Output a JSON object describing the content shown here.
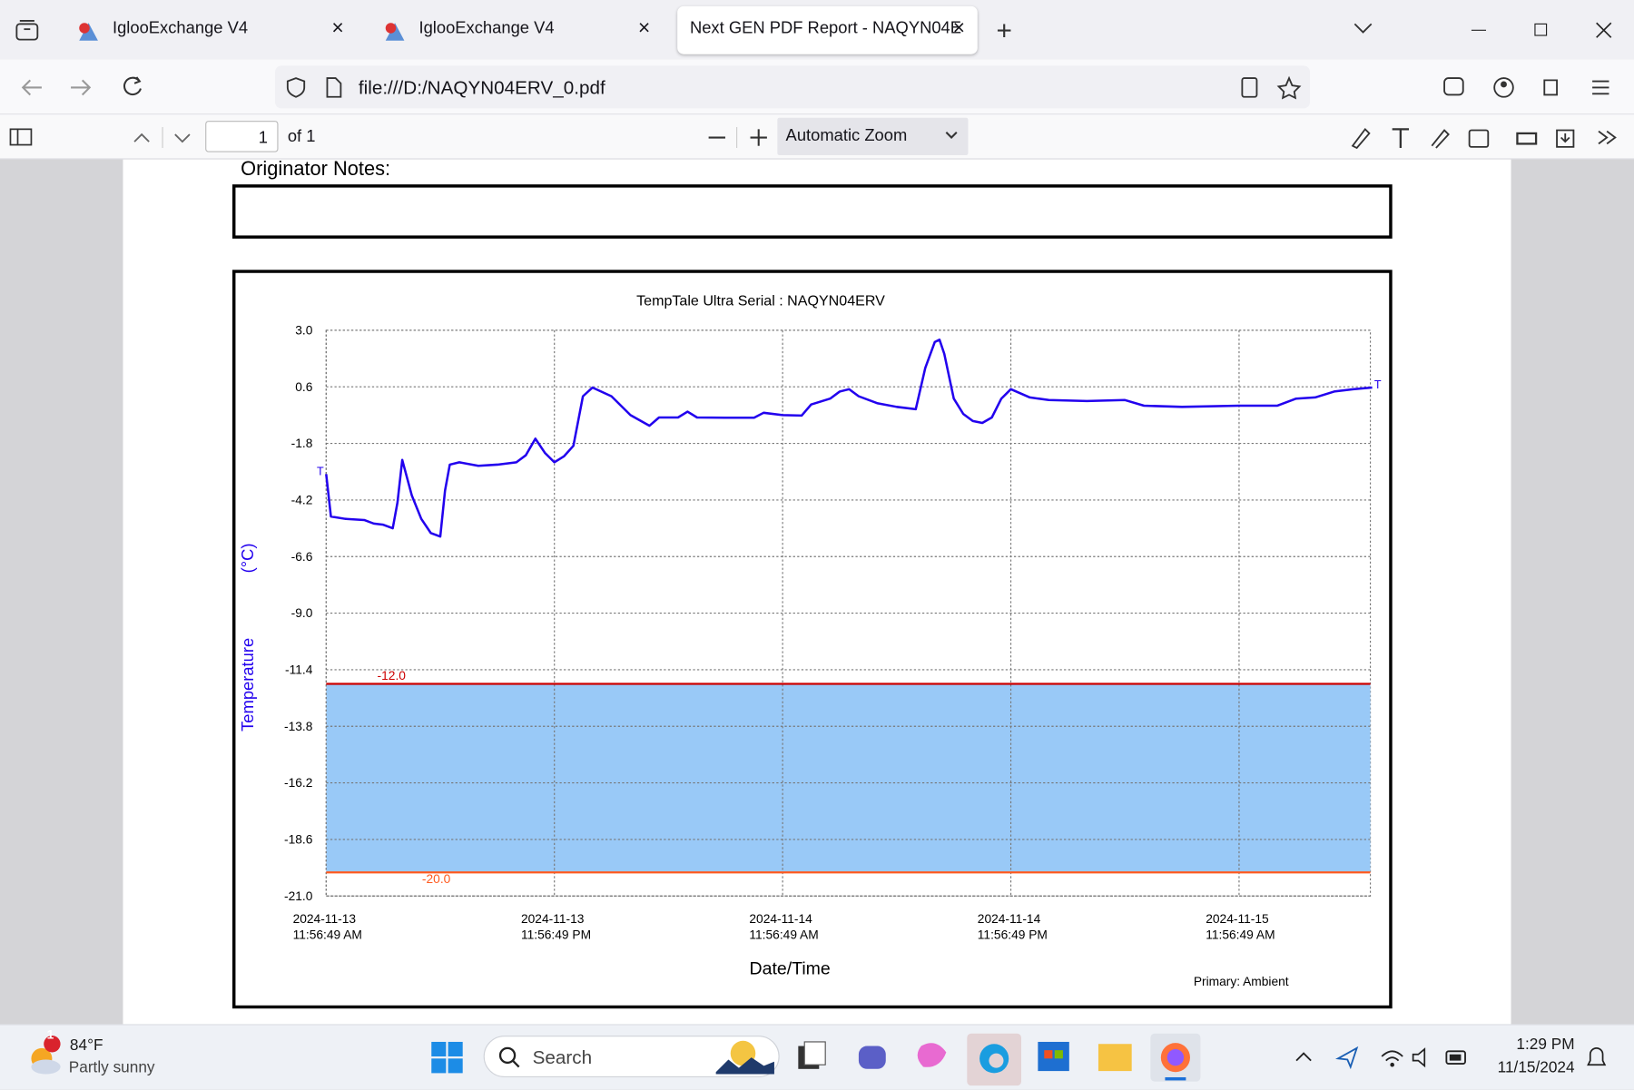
{
  "browser": {
    "tabs": [
      {
        "title": "IglooExchange V4"
      },
      {
        "title": "IglooExchange V4"
      },
      {
        "title": "Next GEN PDF Report - NAQYN04E"
      }
    ],
    "url": "file:///D:/NAQYN04ERV_0.pdf"
  },
  "pdf_toolbar": {
    "page": "1",
    "page_count": "of 1",
    "zoom": "Automatic Zoom"
  },
  "document": {
    "notes_label": "Originator Notes:"
  },
  "chart_data": {
    "type": "line",
    "title": "TempTale Ultra  Serial : NAQYN04ERV",
    "ylabel": "Temperature",
    "yunit": "(°C)",
    "xlabel": "Date/Time",
    "note": "Primary: Ambient",
    "start_marker": "T",
    "end_marker": "T",
    "color": "#2200ee",
    "grid": true,
    "x": [
      "2024-11-13T11:56:49",
      "2024-11-13T12:11:49",
      "2024-11-13T12:56:49",
      "2024-11-13T13:56:49",
      "2024-11-13T14:26:49",
      "2024-11-13T14:56:49",
      "2024-11-13T15:26:49",
      "2024-11-13T15:41:49",
      "2024-11-13T15:56:49",
      "2024-11-13T16:26:49",
      "2024-11-13T16:56:49",
      "2024-11-13T17:26:49",
      "2024-11-13T17:56:49",
      "2024-11-13T18:11:49",
      "2024-11-13T18:26:49",
      "2024-11-13T18:56:49",
      "2024-11-13T19:56:49",
      "2024-11-13T20:56:49",
      "2024-11-13T21:56:49",
      "2024-11-13T22:26:49",
      "2024-11-13T22:56:49",
      "2024-11-13T23:26:49",
      "2024-11-13T23:56:49",
      "2024-11-14T00:26:49",
      "2024-11-14T00:56:49",
      "2024-11-14T01:26:49",
      "2024-11-14T01:56:49",
      "2024-11-14T02:56:49",
      "2024-11-14T03:56:49",
      "2024-11-14T04:56:49",
      "2024-11-14T05:26:49",
      "2024-11-14T06:26:49",
      "2024-11-14T06:56:49",
      "2024-11-14T07:26:49",
      "2024-11-14T08:56:49",
      "2024-11-14T10:26:49",
      "2024-11-14T10:56:49",
      "2024-11-14T11:56:49",
      "2024-11-14T12:56:49",
      "2024-11-14T13:26:49",
      "2024-11-14T14:26:49",
      "2024-11-14T14:56:49",
      "2024-11-14T15:26:49",
      "2024-11-14T15:56:49",
      "2024-11-14T16:56:49",
      "2024-11-14T17:56:49",
      "2024-11-14T18:56:49",
      "2024-11-14T19:26:49",
      "2024-11-14T19:56:49",
      "2024-11-14T20:11:49",
      "2024-11-14T20:26:49",
      "2024-11-14T20:56:49",
      "2024-11-14T21:26:49",
      "2024-11-14T21:56:49",
      "2024-11-14T22:26:49",
      "2024-11-14T22:56:49",
      "2024-11-14T23:26:49",
      "2024-11-14T23:56:49",
      "2024-11-15T00:56:49",
      "2024-11-15T01:56:49",
      "2024-11-15T03:56:49",
      "2024-11-15T05:56:49",
      "2024-11-15T06:56:49",
      "2024-11-15T08:56:49",
      "2024-11-15T11:56:49",
      "2024-11-15T13:56:49",
      "2024-11-15T14:56:49",
      "2024-11-15T15:56:49",
      "2024-11-15T16:56:49",
      "2024-11-15T17:56:49",
      "2024-11-15T18:56:49"
    ],
    "values": [
      -3.1,
      -4.9,
      -5.0,
      -5.05,
      -5.2,
      -5.25,
      -5.4,
      -4.3,
      -2.5,
      -4.0,
      -5.0,
      -5.6,
      -5.75,
      -3.8,
      -2.7,
      -2.6,
      -2.75,
      -2.7,
      -2.6,
      -2.3,
      -1.6,
      -2.2,
      -2.6,
      -2.35,
      -1.9,
      0.2,
      0.57,
      0.2,
      -0.6,
      -1.05,
      -0.7,
      -0.7,
      -0.45,
      -0.7,
      -0.71,
      -0.71,
      -0.5,
      -0.6,
      -0.62,
      -0.15,
      0.1,
      0.4,
      0.5,
      0.2,
      -0.1,
      -0.25,
      -0.35,
      1.4,
      2.5,
      2.6,
      2.0,
      0.1,
      -0.55,
      -0.85,
      -0.93,
      -0.7,
      0.1,
      0.5,
      0.15,
      0.04,
      0.0,
      0.04,
      -0.2,
      -0.25,
      -0.2,
      -0.2,
      0.1,
      0.15,
      0.4,
      0.5,
      0.57
    ],
    "xlim": [
      "2024-11-13T11:56:49",
      "2024-11-15T18:51:00"
    ],
    "xticks": [
      {
        "value": "2024-11-13T11:56:49",
        "label": "2024-11-13\n11:56:49 AM"
      },
      {
        "value": "2024-11-13T23:56:49",
        "label": "2024-11-13\n11:56:49 PM"
      },
      {
        "value": "2024-11-14T11:56:49",
        "label": "2024-11-14\n11:56:49 AM"
      },
      {
        "value": "2024-11-14T23:56:49",
        "label": "2024-11-14\n11:56:49 PM"
      },
      {
        "value": "2024-11-15T11:56:49",
        "label": "2024-11-15\n11:56:49 AM"
      }
    ],
    "ylim": [
      -21,
      3
    ],
    "yticks": [
      {
        "value": 3,
        "label": "3.0"
      },
      0.6,
      -1.8,
      -4.2,
      -6.6,
      {
        "value": -9,
        "label": "-9.0"
      },
      -11.4,
      -13.8,
      -16.2,
      -18.6,
      {
        "value": -21,
        "label": "-21.0"
      }
    ],
    "thresholds": [
      {
        "value": -12,
        "value_label": "-12.0",
        "color": "#cc0000"
      },
      {
        "value": -20,
        "value_label": "-20.0",
        "color": "#ff5a1f"
      }
    ],
    "band_color": "#99c9f7"
  },
  "taskbar": {
    "weather_temp": "84°F",
    "weather_text": "Partly sunny",
    "weather_badge": "1",
    "search": "Search",
    "time": "1:29 PM",
    "date": "11/15/2024"
  }
}
